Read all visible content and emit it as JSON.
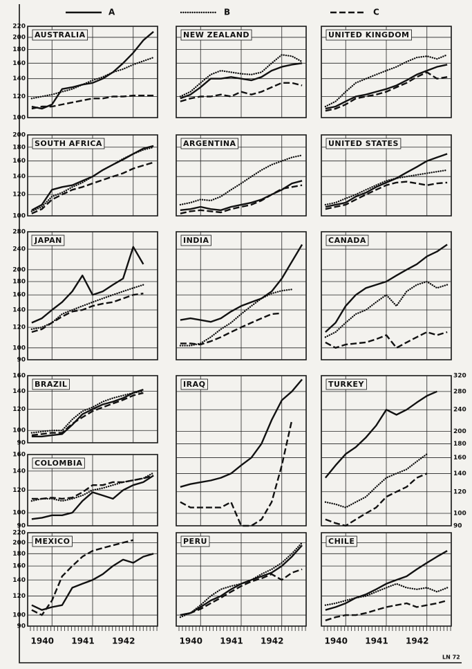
{
  "chart_data": {
    "type": "line",
    "log": true,
    "legend": [
      {
        "name": "A",
        "dash": "solid"
      },
      {
        "name": "B",
        "dash": "dotted"
      },
      {
        "name": "C",
        "dash": "dashed"
      }
    ],
    "x": [
      1939.5,
      1939.75,
      1940,
      1940.25,
      1940.5,
      1940.75,
      1941,
      1941.25,
      1941.5,
      1941.75,
      1942,
      1942.25,
      1942.5
    ],
    "xlim": [
      1939.4,
      1942.6
    ],
    "xticks": [
      1940,
      1941,
      1942
    ],
    "footer": "LN 72",
    "panels": [
      {
        "title": "AUSTRALIA",
        "ylim": [
          100,
          220
        ],
        "yticks": [
          100,
          120,
          140,
          160,
          180,
          200,
          220
        ],
        "tick_side": "left",
        "series": [
          [
            110,
            108,
            112,
            128,
            130,
            133,
            135,
            140,
            148,
            160,
            175,
            195,
            210
          ],
          [
            118,
            120,
            122,
            125,
            128,
            133,
            138,
            142,
            148,
            152,
            158,
            163,
            168
          ],
          [
            108,
            110,
            110,
            112,
            114,
            116,
            118,
            118,
            120,
            120,
            121,
            121,
            121
          ]
        ]
      },
      {
        "title": "NEW ZEALAND",
        "ylim": [
          100,
          220
        ],
        "yticks": [
          100,
          120,
          140,
          160,
          180,
          200,
          220
        ],
        "series": [
          [
            118,
            122,
            130,
            140,
            140,
            142,
            140,
            138,
            142,
            150,
            155,
            158,
            160
          ],
          [
            120,
            125,
            135,
            145,
            150,
            148,
            146,
            145,
            148,
            160,
            172,
            170,
            162
          ],
          [
            115,
            118,
            120,
            120,
            122,
            120,
            125,
            122,
            125,
            130,
            135,
            135,
            132
          ]
        ]
      },
      {
        "title": "UNITED KINGDOM",
        "ylim": [
          100,
          220
        ],
        "yticks": [
          100,
          120,
          140,
          160,
          180,
          200,
          220
        ],
        "series": [
          [
            108,
            110,
            115,
            120,
            122,
            125,
            128,
            132,
            138,
            145,
            150,
            155,
            158
          ],
          [
            110,
            115,
            125,
            135,
            140,
            145,
            150,
            155,
            162,
            168,
            170,
            166,
            172
          ],
          [
            106,
            108,
            112,
            118,
            120,
            122,
            125,
            130,
            135,
            142,
            148,
            140,
            142
          ]
        ]
      },
      {
        "title": "SOUTH AFRICA",
        "ylim": [
          100,
          200
        ],
        "yticks": [
          100,
          120,
          140,
          160,
          180,
          200
        ],
        "tick_side": "left",
        "series": [
          [
            105,
            110,
            125,
            128,
            130,
            135,
            140,
            148,
            155,
            162,
            170,
            178,
            182
          ],
          [
            104,
            108,
            118,
            122,
            128,
            133,
            140,
            148,
            155,
            163,
            170,
            176,
            180
          ],
          [
            102,
            106,
            115,
            120,
            125,
            128,
            132,
            136,
            140,
            144,
            150,
            154,
            158
          ]
        ]
      },
      {
        "title": "ARGENTINA",
        "ylim": [
          100,
          200
        ],
        "yticks": [
          100,
          120,
          140,
          160,
          180,
          200
        ],
        "series": [
          [
            105,
            106,
            108,
            106,
            105,
            108,
            110,
            112,
            115,
            120,
            125,
            132,
            135
          ],
          [
            110,
            112,
            115,
            114,
            118,
            125,
            132,
            140,
            148,
            155,
            160,
            165,
            168
          ],
          [
            102,
            104,
            105,
            104,
            103,
            106,
            108,
            110,
            114,
            120,
            126,
            128,
            130
          ]
        ]
      },
      {
        "title": "UNITED STATES",
        "ylim": [
          100,
          200
        ],
        "yticks": [
          100,
          120,
          140,
          160,
          180,
          200
        ],
        "series": [
          [
            108,
            110,
            112,
            118,
            122,
            128,
            133,
            138,
            145,
            152,
            160,
            165,
            170
          ],
          [
            110,
            112,
            116,
            120,
            125,
            130,
            135,
            138,
            140,
            142,
            144,
            146,
            148
          ],
          [
            106,
            108,
            110,
            115,
            120,
            125,
            130,
            133,
            134,
            132,
            130,
            132,
            133
          ]
        ]
      },
      {
        "title": "JAPAN",
        "ylim": [
          90,
          280
        ],
        "yticks": [
          90,
          100,
          120,
          140,
          160,
          180,
          200,
          240,
          280
        ],
        "tick_side": "left",
        "series": [
          [
            125,
            130,
            140,
            150,
            165,
            190,
            160,
            165,
            175,
            185,
            245,
            210,
            null
          ],
          [
            118,
            120,
            125,
            135,
            140,
            145,
            150,
            155,
            160,
            165,
            170,
            175,
            null
          ],
          [
            115,
            118,
            125,
            132,
            138,
            140,
            145,
            148,
            150,
            155,
            160,
            162,
            null
          ]
        ]
      },
      {
        "title": "INDIA",
        "ylim": [
          90,
          280
        ],
        "yticks": [
          90,
          100,
          120,
          140,
          160,
          180,
          200,
          240,
          280
        ],
        "series": [
          [
            128,
            130,
            128,
            126,
            130,
            138,
            145,
            150,
            155,
            165,
            185,
            215,
            250
          ],
          [
            102,
            102,
            104,
            110,
            118,
            125,
            135,
            145,
            155,
            162,
            166,
            168,
            null
          ],
          [
            104,
            104,
            103,
            106,
            110,
            115,
            120,
            125,
            130,
            135,
            136,
            null,
            null
          ]
        ]
      },
      {
        "title": "CANADA",
        "ylim": [
          90,
          280
        ],
        "yticks": [
          90,
          100,
          120,
          140,
          160,
          180,
          200,
          240,
          280
        ],
        "series": [
          [
            115,
            125,
            145,
            160,
            170,
            175,
            180,
            190,
            200,
            210,
            225,
            235,
            250
          ],
          [
            110,
            115,
            125,
            135,
            140,
            150,
            160,
            145,
            165,
            175,
            180,
            170,
            175
          ],
          [
            105,
            100,
            103,
            104,
            105,
            108,
            112,
            100,
            105,
            110,
            115,
            112,
            115
          ]
        ]
      },
      {
        "title": "BRAZIL",
        "ylim": [
          90,
          160
        ],
        "yticks": [
          90,
          100,
          120,
          140,
          160
        ],
        "tick_side": "left",
        "series": [
          [
            95,
            95,
            96,
            97,
            105,
            115,
            120,
            125,
            128,
            132,
            138,
            142,
            null
          ],
          [
            98,
            99,
            100,
            100,
            110,
            118,
            122,
            128,
            132,
            135,
            138,
            140,
            null
          ],
          [
            96,
            97,
            98,
            98,
            106,
            112,
            118,
            122,
            126,
            130,
            135,
            138,
            null
          ]
        ]
      },
      {
        "title": "COLOMBIA",
        "ylim": [
          90,
          160
        ],
        "yticks": [
          90,
          100,
          120,
          140,
          160
        ],
        "tick_side": "left",
        "series": [
          [
            95,
            96,
            98,
            98,
            100,
            110,
            118,
            115,
            112,
            120,
            125,
            128,
            135
          ],
          [
            110,
            112,
            112,
            110,
            112,
            115,
            120,
            122,
            125,
            128,
            130,
            132,
            138
          ],
          [
            112,
            112,
            113,
            112,
            113,
            118,
            125,
            125,
            128,
            128,
            130,
            132,
            135
          ]
        ]
      },
      {
        "title": "IRAQ",
        "ylim": [
          90,
          320
        ],
        "yticks": [
          90,
          100,
          120,
          140,
          160,
          180,
          200,
          240,
          280,
          320
        ],
        "series": [
          [
            125,
            128,
            130,
            132,
            135,
            140,
            150,
            160,
            180,
            220,
            260,
            280,
            310
          ],
          null,
          [
            110,
            105,
            105,
            105,
            105,
            110,
            90,
            90,
            95,
            110,
            150,
            220,
            null
          ]
        ]
      },
      {
        "title": "TURKEY",
        "ylim": [
          90,
          320
        ],
        "yticks": [
          90,
          100,
          120,
          140,
          160,
          180,
          200,
          240,
          280,
          320
        ],
        "tick_side": "right",
        "series": [
          [
            135,
            150,
            165,
            175,
            190,
            210,
            240,
            230,
            240,
            255,
            270,
            280,
            null
          ],
          [
            110,
            108,
            105,
            110,
            115,
            125,
            135,
            140,
            145,
            155,
            165,
            null,
            null
          ],
          [
            95,
            92,
            90,
            95,
            100,
            105,
            115,
            120,
            125,
            135,
            140,
            null,
            null
          ]
        ]
      },
      {
        "title": "MEXICO",
        "ylim": [
          90,
          220
        ],
        "yticks": [
          90,
          100,
          120,
          140,
          160,
          180,
          200,
          220
        ],
        "tick_side": "left",
        "x_labels": true,
        "series": [
          [
            110,
            105,
            108,
            110,
            130,
            135,
            140,
            148,
            160,
            170,
            165,
            175,
            180
          ],
          null,
          [
            105,
            100,
            115,
            145,
            160,
            175,
            185,
            190,
            195,
            200,
            205,
            null,
            null
          ]
        ]
      },
      {
        "title": "PERU",
        "ylim": [
          90,
          220
        ],
        "yticks": [
          90,
          100,
          120,
          140,
          160,
          180,
          200,
          220
        ],
        "x_labels": true,
        "series": [
          [
            100,
            102,
            108,
            115,
            120,
            128,
            135,
            140,
            145,
            150,
            160,
            175,
            195
          ],
          [
            98,
            102,
            110,
            120,
            128,
            132,
            135,
            140,
            148,
            155,
            165,
            180,
            200
          ],
          [
            100,
            102,
            106,
            112,
            118,
            125,
            132,
            138,
            142,
            148,
            140,
            150,
            155
          ]
        ]
      },
      {
        "title": "CHILE",
        "ylim": [
          90,
          220
        ],
        "yticks": [
          90,
          100,
          120,
          140,
          160,
          180,
          200,
          220
        ],
        "x_labels": true,
        "series": [
          [
            105,
            108,
            112,
            118,
            122,
            128,
            135,
            140,
            145,
            155,
            165,
            175,
            185
          ],
          [
            110,
            112,
            115,
            118,
            120,
            125,
            130,
            135,
            130,
            128,
            130,
            125,
            130
          ],
          [
            95,
            98,
            100,
            100,
            102,
            105,
            108,
            110,
            112,
            108,
            110,
            112,
            115
          ]
        ]
      }
    ]
  }
}
